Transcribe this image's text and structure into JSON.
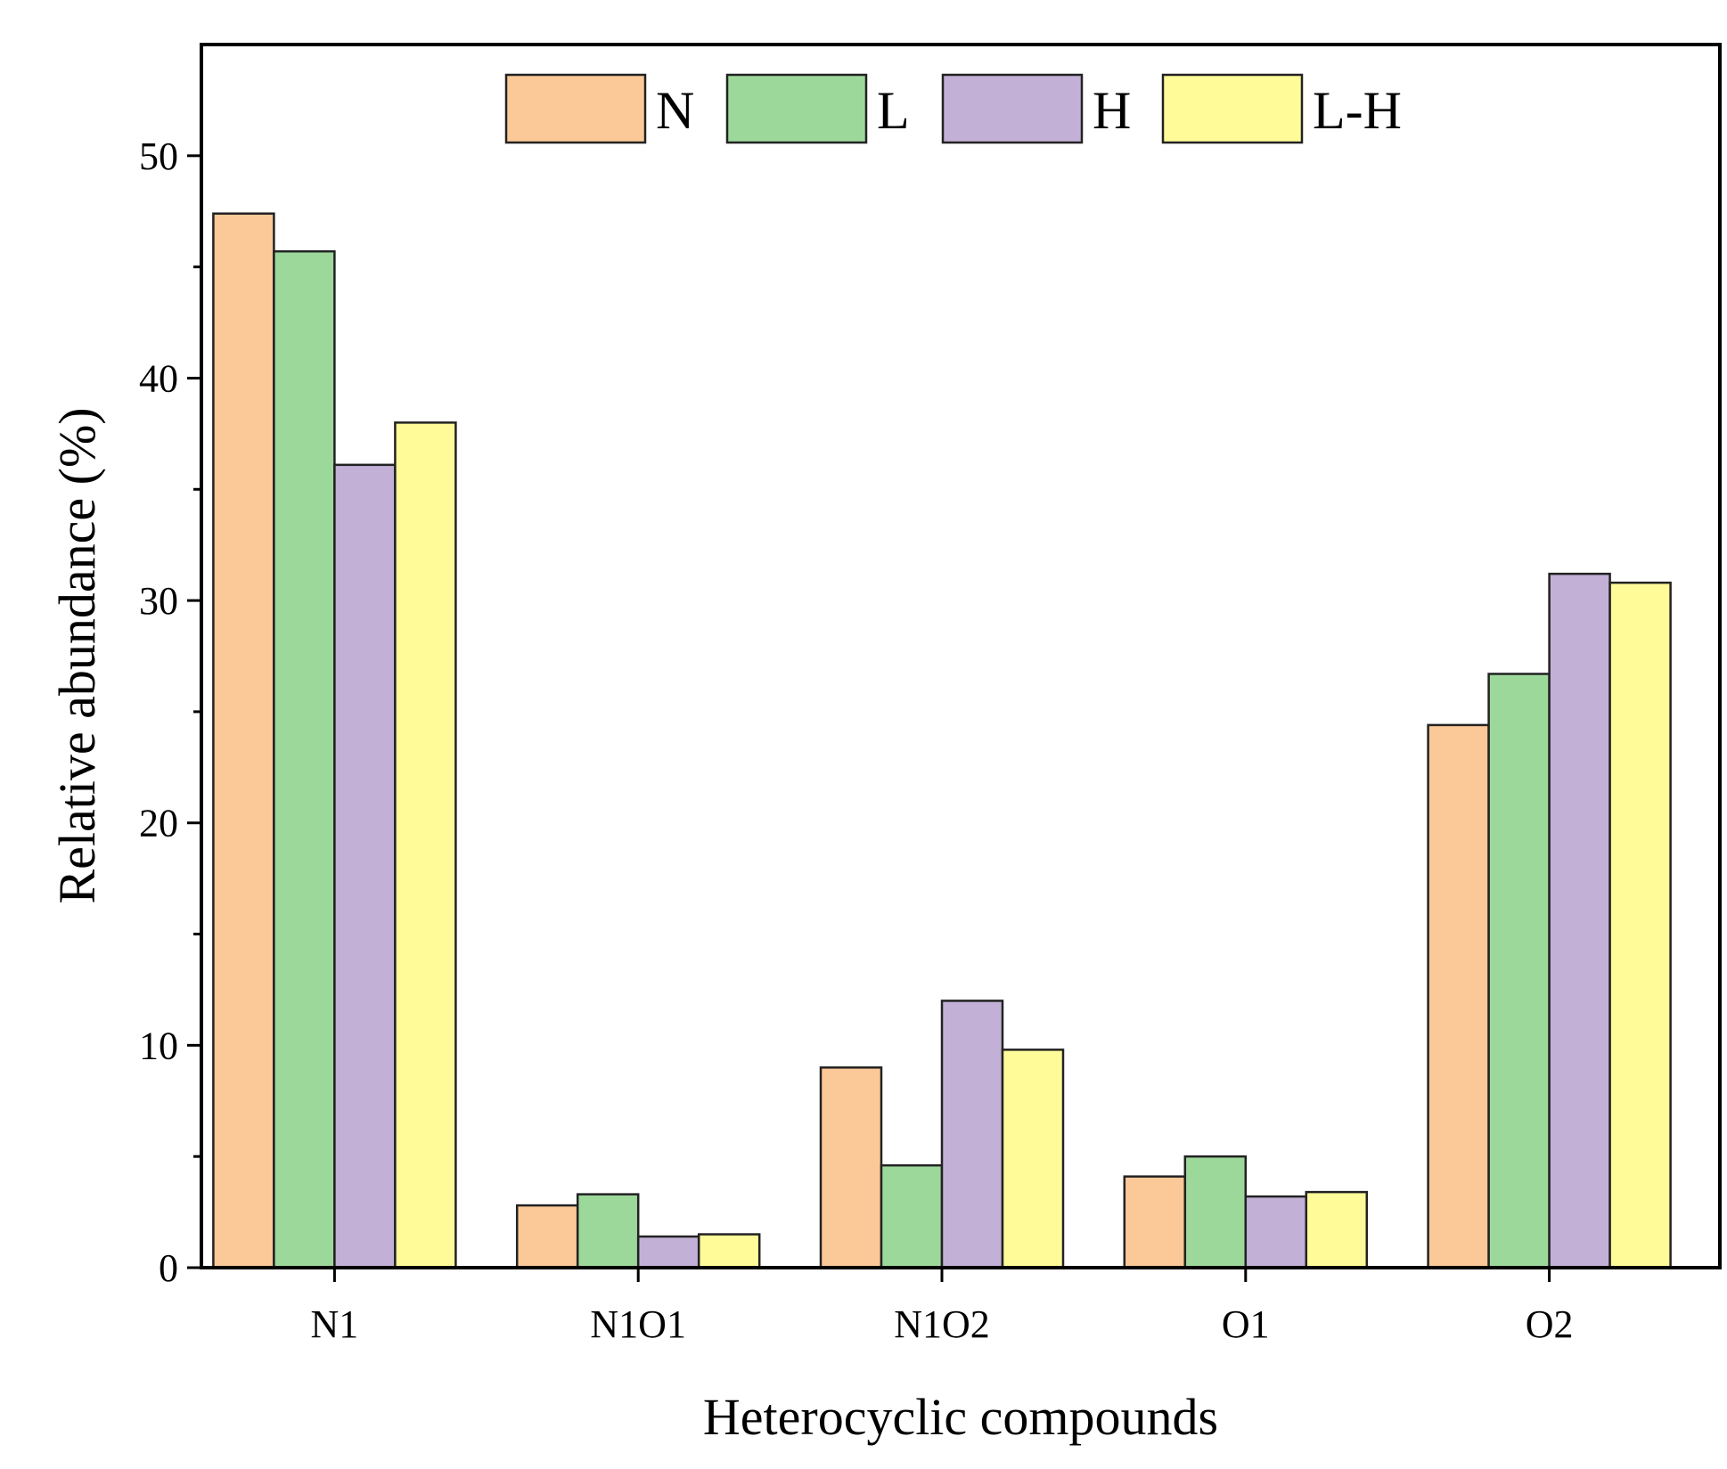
{
  "chart_data": {
    "type": "bar",
    "title": "",
    "xlabel": "Heterocyclic compounds",
    "ylabel": "Relative abundance (%)",
    "ylim": [
      0,
      55
    ],
    "yticks": [
      0,
      10,
      20,
      30,
      40,
      50
    ],
    "ytick_labels": [
      "0",
      "10",
      "20",
      "30",
      "40",
      "50"
    ],
    "grid": false,
    "legend_position": "top-center",
    "categories": [
      "N1",
      "N1O1",
      "N1O2",
      "O1",
      "O2"
    ],
    "series": [
      {
        "name": "N",
        "color": "#fbc897",
        "values": [
          47.4,
          2.8,
          9.0,
          4.1,
          24.4
        ]
      },
      {
        "name": "L",
        "color": "#9dd89b",
        "values": [
          45.7,
          3.3,
          4.6,
          5.0,
          26.7
        ]
      },
      {
        "name": "H",
        "color": "#c3b0d6",
        "values": [
          36.1,
          1.4,
          12.0,
          3.2,
          31.2
        ]
      },
      {
        "name": "L-H",
        "color": "#fffb99",
        "values": [
          38.0,
          1.5,
          9.8,
          3.4,
          30.8
        ]
      }
    ]
  }
}
